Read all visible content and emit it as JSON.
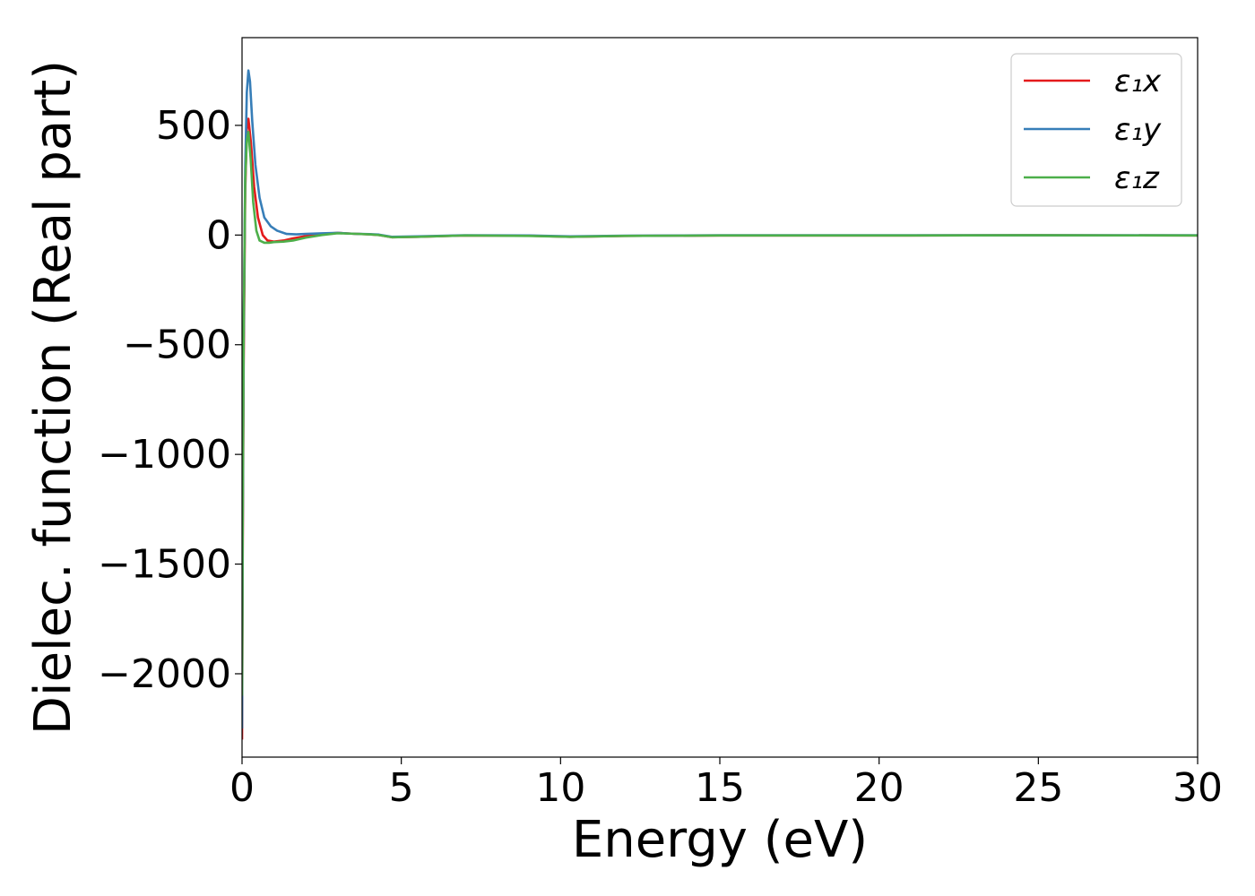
{
  "chart_data": {
    "type": "line",
    "title": "",
    "xlabel": "Energy (eV)",
    "ylabel": "Dielec. function (Real part)",
    "xlim": [
      0,
      30
    ],
    "ylim": [
      -2380,
      900
    ],
    "xticks": [
      0,
      5,
      10,
      15,
      20,
      25,
      30
    ],
    "xtick_labels": [
      "0",
      "5",
      "10",
      "15",
      "20",
      "25",
      "30"
    ],
    "yticks": [
      500,
      0,
      -500,
      -1000,
      -1500,
      -2000
    ],
    "ytick_labels": [
      "500",
      "0",
      "−500",
      "−1000",
      "−1500",
      "−2000"
    ],
    "grid": false,
    "legend_position": "top-right",
    "series": [
      {
        "name": "ε₁x",
        "color": "#e41a1c",
        "points": [
          [
            0.0,
            -2300
          ],
          [
            0.02,
            -1500
          ],
          [
            0.05,
            -600
          ],
          [
            0.1,
            200
          ],
          [
            0.15,
            480
          ],
          [
            0.2,
            530
          ],
          [
            0.28,
            420
          ],
          [
            0.38,
            220
          ],
          [
            0.5,
            80
          ],
          [
            0.65,
            0
          ],
          [
            0.8,
            -25
          ],
          [
            1.0,
            -30
          ],
          [
            1.3,
            -25
          ],
          [
            1.6,
            -15
          ],
          [
            2.0,
            -5
          ],
          [
            2.5,
            5
          ],
          [
            3.0,
            10
          ],
          [
            3.5,
            6
          ],
          [
            4.0,
            3
          ],
          [
            4.3,
            0
          ],
          [
            4.7,
            -10
          ],
          [
            5.5,
            -8
          ],
          [
            7.0,
            -2
          ],
          [
            9.0,
            -3
          ],
          [
            10.3,
            -8
          ],
          [
            12.0,
            -4
          ],
          [
            15.0,
            -2
          ],
          [
            20.0,
            -2
          ],
          [
            25.0,
            -1
          ],
          [
            30.0,
            -2
          ]
        ]
      },
      {
        "name": "ε₁y",
        "color": "#377eb8",
        "points": [
          [
            0.0,
            -2250
          ],
          [
            0.02,
            -1400
          ],
          [
            0.05,
            -500
          ],
          [
            0.1,
            300
          ],
          [
            0.15,
            650
          ],
          [
            0.2,
            750
          ],
          [
            0.25,
            700
          ],
          [
            0.32,
            520
          ],
          [
            0.42,
            320
          ],
          [
            0.55,
            170
          ],
          [
            0.7,
            80
          ],
          [
            0.9,
            40
          ],
          [
            1.1,
            20
          ],
          [
            1.4,
            5
          ],
          [
            1.7,
            3
          ],
          [
            2.0,
            5
          ],
          [
            2.5,
            8
          ],
          [
            3.0,
            10
          ],
          [
            3.5,
            6
          ],
          [
            4.0,
            4
          ],
          [
            4.3,
            2
          ],
          [
            4.7,
            -8
          ],
          [
            5.5,
            -6
          ],
          [
            7.0,
            -1
          ],
          [
            9.0,
            -2
          ],
          [
            10.3,
            -6
          ],
          [
            12.0,
            -3
          ],
          [
            15.0,
            -1
          ],
          [
            20.0,
            -1
          ],
          [
            25.0,
            -1
          ],
          [
            30.0,
            -1
          ]
        ]
      },
      {
        "name": "ε₁z",
        "color": "#4daf4a",
        "points": [
          [
            0.0,
            -2100
          ],
          [
            0.02,
            -1300
          ],
          [
            0.05,
            -450
          ],
          [
            0.1,
            250
          ],
          [
            0.15,
            430
          ],
          [
            0.2,
            470
          ],
          [
            0.27,
            350
          ],
          [
            0.35,
            150
          ],
          [
            0.45,
            20
          ],
          [
            0.55,
            -25
          ],
          [
            0.7,
            -35
          ],
          [
            0.85,
            -35
          ],
          [
            1.0,
            -32
          ],
          [
            1.3,
            -30
          ],
          [
            1.6,
            -25
          ],
          [
            2.0,
            -12
          ],
          [
            2.5,
            0
          ],
          [
            3.0,
            8
          ],
          [
            3.5,
            6
          ],
          [
            4.0,
            3
          ],
          [
            4.3,
            0
          ],
          [
            4.7,
            -10
          ],
          [
            5.5,
            -8
          ],
          [
            7.0,
            -2
          ],
          [
            9.0,
            -4
          ],
          [
            10.3,
            -8
          ],
          [
            12.0,
            -4
          ],
          [
            15.0,
            -2
          ],
          [
            20.0,
            -2
          ],
          [
            25.0,
            -1
          ],
          [
            30.0,
            -2
          ]
        ]
      }
    ]
  }
}
